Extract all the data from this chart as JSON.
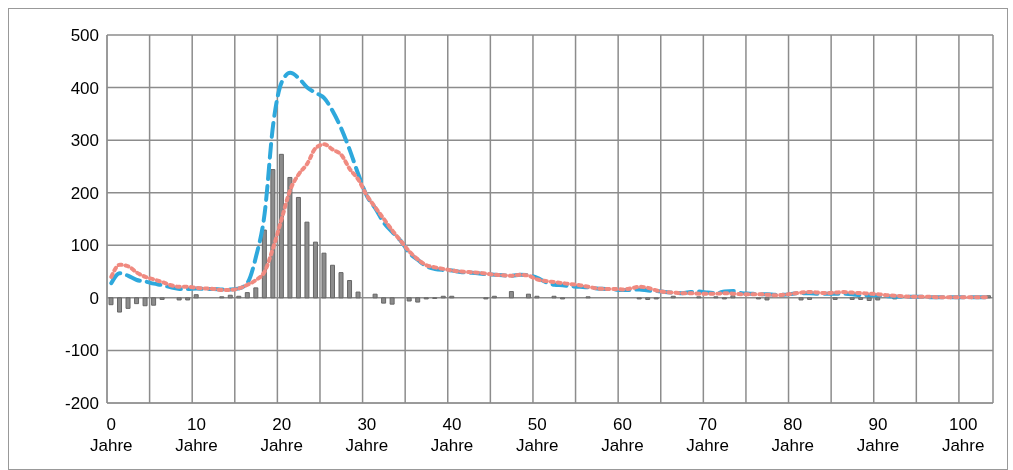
{
  "chart_data": {
    "type": "bar",
    "categories": [
      "0 Jahre",
      null,
      null,
      null,
      null,
      null,
      null,
      null,
      null,
      null,
      "10 Jahre",
      null,
      null,
      null,
      null,
      null,
      null,
      null,
      null,
      null,
      "20 Jahre",
      null,
      null,
      null,
      null,
      null,
      null,
      null,
      null,
      null,
      "30 Jahre",
      null,
      null,
      null,
      null,
      null,
      null,
      null,
      null,
      null,
      "40 Jahre",
      null,
      null,
      null,
      null,
      null,
      null,
      null,
      null,
      null,
      "50 Jahre",
      null,
      null,
      null,
      null,
      null,
      null,
      null,
      null,
      null,
      "60 Jahre",
      null,
      null,
      null,
      null,
      null,
      null,
      null,
      null,
      null,
      "70 Jahre",
      null,
      null,
      null,
      null,
      null,
      null,
      null,
      null,
      null,
      "80 Jahre",
      null,
      null,
      null,
      null,
      null,
      null,
      null,
      null,
      null,
      "90 Jahre",
      null,
      null,
      null,
      null,
      null,
      null,
      null,
      null,
      null,
      "100 Jahre",
      null,
      null,
      null
    ],
    "series": [
      {
        "color": "#8c8c8c",
        "values": [
          -13,
          -27,
          -20,
          -11,
          -15,
          -14,
          -3,
          0,
          -4,
          -4,
          6,
          0,
          0,
          2,
          5,
          3,
          10,
          19,
          129,
          244,
          273,
          229,
          191,
          144,
          106,
          85,
          62,
          48,
          33,
          11,
          0,
          7,
          -10,
          -12,
          0,
          -6,
          -8,
          -2,
          -1,
          3,
          3,
          0,
          0,
          0,
          -2,
          3,
          0,
          12,
          0,
          7,
          3,
          0,
          3,
          -2,
          0,
          0,
          2,
          0,
          0,
          0,
          0,
          0,
          -2,
          -3,
          -2,
          0,
          3,
          0,
          0,
          2,
          0,
          2,
          -2,
          4,
          0,
          0,
          -2,
          -4,
          0,
          0,
          0,
          -4,
          -3,
          0,
          0,
          -3,
          0,
          -3,
          -3,
          -5,
          -4,
          0,
          -2,
          0,
          0,
          0,
          0,
          0,
          0,
          0,
          0,
          0,
          0,
          4
        ]
      },
      {
        "type": "line",
        "color": "#2ea8dc",
        "line_style": "dashed",
        "values": [
          28,
          47,
          42,
          34,
          31,
          27,
          24,
          20,
          17,
          17,
          18,
          17,
          17,
          16,
          16,
          18,
          29,
          79,
          160,
          329,
          410,
          428,
          418,
          400,
          390,
          380,
          355,
          322,
          281,
          235,
          194,
          170,
          143,
          125,
          108,
          85,
          72,
          60,
          55,
          53,
          52,
          49,
          48,
          47,
          45,
          44,
          43,
          42,
          44,
          43,
          38,
          30,
          25,
          24,
          22,
          21,
          20,
          18,
          17,
          16,
          15,
          15,
          16,
          14,
          13,
          11,
          10,
          9,
          11,
          12,
          10,
          9,
          12,
          13,
          9,
          8,
          7,
          7,
          6,
          6,
          8,
          9,
          9,
          8,
          8,
          8,
          8,
          7,
          5,
          5,
          5,
          3,
          2,
          2,
          2,
          2,
          1,
          1,
          1,
          1,
          1,
          1,
          1,
          1
        ]
      },
      {
        "type": "line",
        "color": "#f08a80",
        "line_style": "dotted",
        "values": [
          40,
          63,
          60,
          48,
          40,
          35,
          30,
          24,
          21,
          21,
          19,
          18,
          17,
          15,
          15,
          18,
          25,
          34,
          50,
          95,
          150,
          205,
          235,
          255,
          285,
          292,
          282,
          272,
          245,
          225,
          195,
          172,
          150,
          128,
          108,
          88,
          73,
          62,
          58,
          55,
          52,
          50,
          49,
          48,
          46,
          44,
          43,
          42,
          44,
          42,
          35,
          32,
          30,
          28,
          26,
          24,
          21,
          18,
          17,
          17,
          16,
          18,
          21,
          19,
          14,
          11,
          10,
          9,
          9,
          8,
          8,
          8,
          9,
          8,
          7,
          7,
          7,
          6,
          5,
          6,
          8,
          10,
          11,
          10,
          9,
          10,
          11,
          10,
          9,
          8,
          7,
          5,
          4,
          3,
          2,
          2,
          2,
          1,
          1,
          1,
          1,
          1,
          1,
          1
        ]
      }
    ],
    "ylim": [
      -200,
      500
    ],
    "yticks": [
      -200,
      -100,
      0,
      100,
      200,
      300,
      400,
      500
    ],
    "grid": true,
    "marker": "none"
  }
}
